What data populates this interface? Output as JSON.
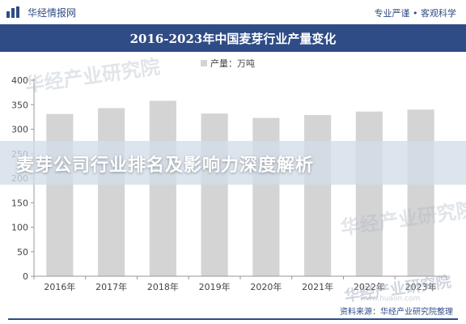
{
  "header": {
    "brand": "华经情报网",
    "slogan": "专业严谨 • 客观科学"
  },
  "banner": {
    "text": "麦芽公司行业排名及影响力深度解析"
  },
  "watermark": {
    "text": "华经产业研究院",
    "url": "www.huaon.com"
  },
  "footer": {
    "source": "资料来源：华经产业研究院整理"
  },
  "colors": {
    "brand_blue": "#2f4c86",
    "bar": "#d4d4d4"
  },
  "chart_data": {
    "type": "bar",
    "title": "2016-2023年中国麦芽行业产量变化",
    "legend": "产量：万吨",
    "legend_position": "top-center",
    "categories": [
      "2016年",
      "2017年",
      "2018年",
      "2019年",
      "2020年",
      "2021年",
      "2022年",
      "2023年"
    ],
    "values": [
      331,
      343,
      358,
      332,
      323,
      329,
      336,
      340
    ],
    "ylim": [
      0,
      400
    ],
    "yticks": [
      0,
      50,
      100,
      150,
      200,
      250,
      300,
      350,
      400
    ],
    "grid": false
  }
}
